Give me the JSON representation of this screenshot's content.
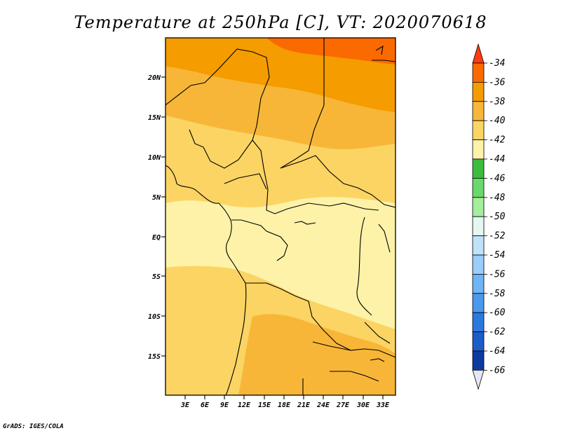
{
  "title": "Temperature at 250hPa [C], VT: 2020070618",
  "footer": "GrADS: IGES/COLA",
  "map": {
    "lon_range": [
      0,
      35
    ],
    "lat_range": [
      -20,
      25
    ],
    "lat_ticks": [
      "20N",
      "15N",
      "10N",
      "5N",
      "EQ",
      "5S",
      "10S",
      "15S"
    ],
    "lon_ticks": [
      "3E",
      "6E",
      "9E",
      "12E",
      "15E",
      "18E",
      "21E",
      "24E",
      "27E",
      "30E",
      "33E"
    ]
  },
  "colorbar": {
    "labels": [
      "-34",
      "-36",
      "-38",
      "-40",
      "-42",
      "-44",
      "-46",
      "-48",
      "-50",
      "-52",
      "-54",
      "-56",
      "-58",
      "-60",
      "-62",
      "-64",
      "-66"
    ],
    "colors": [
      "#ff3c10",
      "#fa6a00",
      "#f59c00",
      "#f8b638",
      "#fbd463",
      "#fdf2a8",
      "#3cbd3c",
      "#6ad86a",
      "#a4ee9e",
      "#e4f7f0",
      "#bfe2f8",
      "#9acdf8",
      "#6fb4f4",
      "#4a99ec",
      "#2b79e0",
      "#1a5cc8",
      "#0d3aa0",
      "#08126a",
      "#e6e6f8"
    ]
  }
}
